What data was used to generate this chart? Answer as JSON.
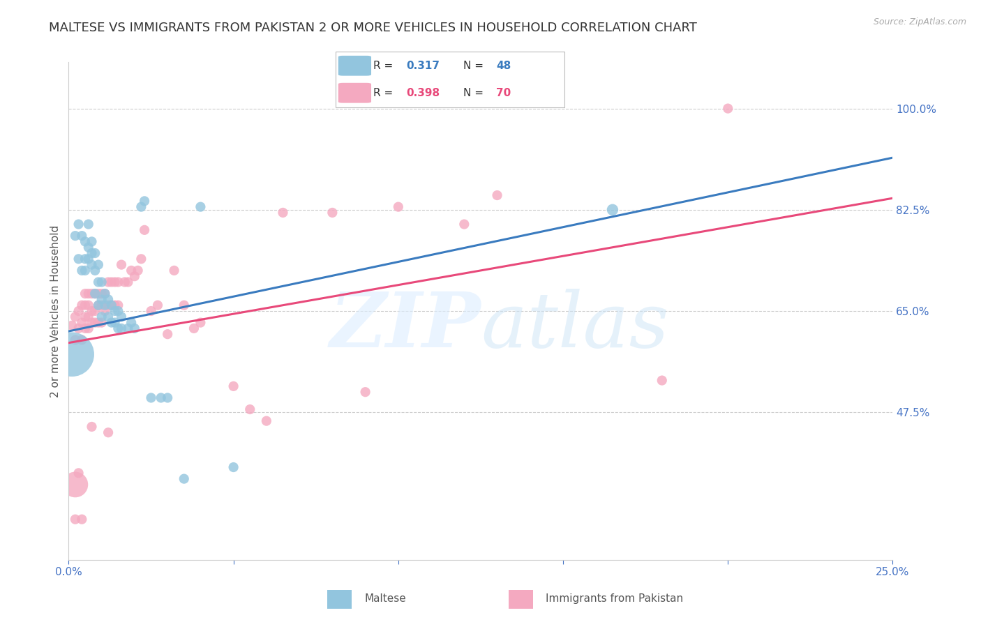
{
  "title": "MALTESE VS IMMIGRANTS FROM PAKISTAN 2 OR MORE VEHICLES IN HOUSEHOLD CORRELATION CHART",
  "source": "Source: ZipAtlas.com",
  "ylabel": "2 or more Vehicles in Household",
  "right_ytick_labels": [
    "100.0%",
    "82.5%",
    "65.0%",
    "47.5%"
  ],
  "right_ytick_values": [
    1.0,
    0.825,
    0.65,
    0.475
  ],
  "xtick_labels": [
    "0.0%",
    "",
    "",
    "",
    "",
    "25.0%"
  ],
  "xtick_positions": [
    0.0,
    0.05,
    0.1,
    0.15,
    0.2,
    0.25
  ],
  "xlim": [
    0.0,
    0.25
  ],
  "ylim": [
    0.22,
    1.08
  ],
  "blue_color": "#92c5de",
  "pink_color": "#f4a9c0",
  "blue_line_color": "#3a7bbf",
  "pink_line_color": "#e8497a",
  "r_blue": 0.317,
  "n_blue": 48,
  "r_pink": 0.398,
  "n_pink": 70,
  "legend_blue_label": "Maltese",
  "legend_pink_label": "Immigrants from Pakistan",
  "blue_line_x0": 0.0,
  "blue_line_y0": 0.615,
  "blue_line_x1": 0.25,
  "blue_line_y1": 0.915,
  "pink_line_x0": 0.0,
  "pink_line_y0": 0.595,
  "pink_line_x1": 0.25,
  "pink_line_y1": 0.845,
  "blue_scatter_x": [
    0.002,
    0.003,
    0.003,
    0.004,
    0.004,
    0.005,
    0.005,
    0.005,
    0.006,
    0.006,
    0.006,
    0.007,
    0.007,
    0.007,
    0.008,
    0.008,
    0.008,
    0.009,
    0.009,
    0.009,
    0.01,
    0.01,
    0.01,
    0.011,
    0.011,
    0.012,
    0.012,
    0.013,
    0.013,
    0.014,
    0.014,
    0.015,
    0.015,
    0.016,
    0.016,
    0.018,
    0.019,
    0.02,
    0.022,
    0.023,
    0.025,
    0.028,
    0.03,
    0.035,
    0.04,
    0.05,
    0.165,
    0.001
  ],
  "blue_scatter_y": [
    0.78,
    0.74,
    0.8,
    0.72,
    0.78,
    0.72,
    0.74,
    0.77,
    0.76,
    0.8,
    0.74,
    0.73,
    0.77,
    0.75,
    0.68,
    0.72,
    0.75,
    0.66,
    0.7,
    0.73,
    0.64,
    0.67,
    0.7,
    0.66,
    0.68,
    0.64,
    0.67,
    0.63,
    0.66,
    0.63,
    0.65,
    0.62,
    0.65,
    0.62,
    0.64,
    0.62,
    0.63,
    0.62,
    0.83,
    0.84,
    0.5,
    0.5,
    0.5,
    0.36,
    0.83,
    0.38,
    0.825,
    0.575
  ],
  "blue_scatter_size": [
    30,
    30,
    30,
    30,
    30,
    30,
    30,
    30,
    30,
    30,
    30,
    30,
    30,
    30,
    30,
    30,
    30,
    30,
    30,
    30,
    30,
    30,
    30,
    30,
    30,
    30,
    30,
    30,
    30,
    30,
    30,
    30,
    30,
    30,
    30,
    30,
    30,
    30,
    30,
    30,
    30,
    30,
    30,
    30,
    30,
    30,
    40,
    600
  ],
  "pink_scatter_x": [
    0.001,
    0.002,
    0.002,
    0.003,
    0.003,
    0.003,
    0.004,
    0.004,
    0.004,
    0.005,
    0.005,
    0.005,
    0.005,
    0.006,
    0.006,
    0.006,
    0.006,
    0.007,
    0.007,
    0.007,
    0.008,
    0.008,
    0.008,
    0.009,
    0.009,
    0.009,
    0.01,
    0.01,
    0.01,
    0.011,
    0.011,
    0.012,
    0.012,
    0.013,
    0.013,
    0.014,
    0.014,
    0.015,
    0.015,
    0.016,
    0.017,
    0.018,
    0.019,
    0.02,
    0.021,
    0.022,
    0.023,
    0.025,
    0.027,
    0.03,
    0.032,
    0.035,
    0.038,
    0.04,
    0.055,
    0.06,
    0.065,
    0.08,
    0.1,
    0.12,
    0.002,
    0.004,
    0.007,
    0.012,
    0.002,
    0.13,
    0.18,
    0.2,
    0.09,
    0.05
  ],
  "pink_scatter_y": [
    0.625,
    0.64,
    0.6,
    0.62,
    0.65,
    0.37,
    0.6,
    0.63,
    0.66,
    0.62,
    0.64,
    0.66,
    0.68,
    0.62,
    0.64,
    0.66,
    0.68,
    0.63,
    0.65,
    0.68,
    0.63,
    0.65,
    0.68,
    0.63,
    0.66,
    0.68,
    0.63,
    0.66,
    0.68,
    0.65,
    0.68,
    0.66,
    0.7,
    0.66,
    0.7,
    0.66,
    0.7,
    0.66,
    0.7,
    0.73,
    0.7,
    0.7,
    0.72,
    0.71,
    0.72,
    0.74,
    0.79,
    0.65,
    0.66,
    0.61,
    0.72,
    0.66,
    0.62,
    0.63,
    0.48,
    0.46,
    0.82,
    0.82,
    0.83,
    0.8,
    0.29,
    0.29,
    0.45,
    0.44,
    0.35,
    0.85,
    0.53,
    1.0,
    0.51,
    0.52
  ],
  "pink_scatter_size": [
    30,
    30,
    30,
    30,
    30,
    30,
    30,
    30,
    30,
    30,
    30,
    30,
    30,
    30,
    30,
    30,
    30,
    30,
    30,
    30,
    30,
    30,
    30,
    30,
    30,
    30,
    30,
    30,
    30,
    30,
    30,
    30,
    30,
    30,
    30,
    30,
    30,
    30,
    30,
    30,
    30,
    30,
    30,
    30,
    30,
    30,
    30,
    30,
    30,
    30,
    30,
    30,
    30,
    30,
    30,
    30,
    30,
    30,
    30,
    30,
    30,
    30,
    30,
    30,
    200,
    30,
    30,
    30,
    30,
    30
  ],
  "grid_color": "#cccccc",
  "axis_color": "#4472c4",
  "background_color": "#ffffff",
  "title_fontsize": 13,
  "label_fontsize": 11,
  "tick_fontsize": 11
}
